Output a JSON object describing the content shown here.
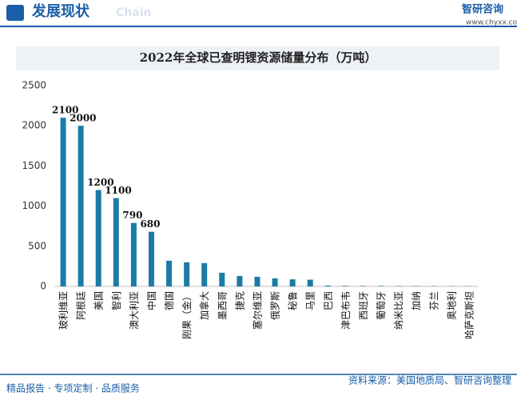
{
  "header": {
    "title": "发展现状",
    "subtitle": "Chain",
    "logo": "智研咨询",
    "url": "www.chyxx.com"
  },
  "footer": {
    "left": "精品报告 · 专项定制 · 品质服务",
    "source": "资料来源：美国地质局、智研咨询整理"
  },
  "chart_data": {
    "type": "bar",
    "title": "2022年全球已查明锂资源储量分布（万吨）",
    "categories": [
      "玻利维亚",
      "阿根廷",
      "美国",
      "智利",
      "澳大利亚",
      "中国",
      "德国",
      "刚果（金）",
      "加拿大",
      "墨西哥",
      "捷克",
      "塞尔维亚",
      "俄罗斯",
      "秘鲁",
      "马里",
      "巴西",
      "津巴布韦",
      "西班牙",
      "葡萄牙",
      "纳米比亚",
      "加纳",
      "芬兰",
      "奥地利",
      "哈萨克斯坦"
    ],
    "values": [
      2100,
      2000,
      1200,
      1100,
      790,
      680,
      320,
      300,
      290,
      170,
      130,
      120,
      100,
      88,
      84,
      10,
      7,
      6,
      6,
      5,
      4,
      4,
      3,
      2
    ],
    "value_labels": [
      "2100",
      "2000",
      "1200",
      "1100",
      "790",
      "680",
      null,
      null,
      null,
      null,
      null,
      null,
      null,
      null,
      null,
      null,
      null,
      null,
      null,
      null,
      null,
      null,
      null,
      null
    ],
    "color": "#1a7ca6",
    "ylim": [
      0,
      2500
    ],
    "yticks": [
      0,
      500,
      1000,
      1500,
      2000,
      2500
    ],
    "grid": false
  }
}
